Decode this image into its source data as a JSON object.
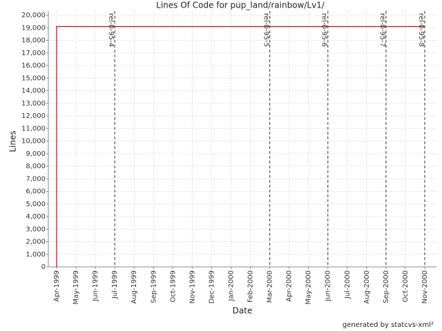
{
  "chart_data": {
    "type": "line",
    "title": "Lines Of Code for pup_land/rainbow/Lv1/",
    "x_label": "Date",
    "y_label": "Lines",
    "footer": "generated by statcvs-xml²",
    "x": [
      "1999-04",
      "1999-04",
      "2000-11"
    ],
    "series": [
      {
        "color": "#cc0000",
        "values": [
          0,
          19100,
          19100
        ]
      }
    ],
    "xlim": [
      "1999-04",
      "2000-11"
    ],
    "xticks": [
      {
        "value": "1999-04",
        "label": "Apr-1999"
      },
      {
        "value": "1999-05",
        "label": "May-1999"
      },
      {
        "value": "1999-06",
        "label": "Jun-1999"
      },
      {
        "value": "1999-07",
        "label": "Jul-1999"
      },
      {
        "value": "1999-08",
        "label": "Aug-1999"
      },
      {
        "value": "1999-09",
        "label": "Sep-1999"
      },
      {
        "value": "1999-10",
        "label": "Oct-1999"
      },
      {
        "value": "1999-11",
        "label": "Nov-1999"
      },
      {
        "value": "1999-12",
        "label": "Dec-1999"
      },
      {
        "value": "2000-01",
        "label": "Jan-2000"
      },
      {
        "value": "2000-02",
        "label": "Feb-2000"
      },
      {
        "value": "2000-03",
        "label": "Mar-2000"
      },
      {
        "value": "2000-04",
        "label": "Apr-2000"
      },
      {
        "value": "2000-05",
        "label": "May-2000"
      },
      {
        "value": "2000-06",
        "label": "Jun-2000"
      },
      {
        "value": "2000-07",
        "label": "Jul-2000"
      },
      {
        "value": "2000-08",
        "label": "Aug-2000"
      },
      {
        "value": "2000-09",
        "label": "Sep-2000"
      },
      {
        "value": "2000-10",
        "label": "Oct-2000"
      },
      {
        "value": "2000-11",
        "label": "Nov-2000"
      }
    ],
    "ylim": [
      0,
      20000
    ],
    "yticks": [
      0,
      {
        "value": 1000,
        "label": "1,000"
      },
      {
        "value": 2000,
        "label": "2,000"
      },
      {
        "value": 3000,
        "label": "3,000"
      },
      {
        "value": 4000,
        "label": "4,000"
      },
      {
        "value": 5000,
        "label": "5,000"
      },
      {
        "value": 6000,
        "label": "6,000"
      },
      {
        "value": 7000,
        "label": "7,000"
      },
      {
        "value": 8000,
        "label": "8,000"
      },
      {
        "value": 9000,
        "label": "9,000"
      },
      {
        "value": 10000,
        "label": "10,000"
      },
      {
        "value": 11000,
        "label": "11,000"
      },
      {
        "value": 12000,
        "label": "12,000"
      },
      {
        "value": 13000,
        "label": "13,000"
      },
      {
        "value": 14000,
        "label": "14,000"
      },
      {
        "value": 15000,
        "label": "15,000"
      },
      {
        "value": 16000,
        "label": "16,000"
      },
      {
        "value": 17000,
        "label": "17,000"
      },
      {
        "value": 18000,
        "label": "18,000"
      },
      {
        "value": 19000,
        "label": "19,000"
      },
      {
        "value": 20000,
        "label": "20,000"
      }
    ],
    "grid": true,
    "markers": [
      {
        "x": "1999-07",
        "label": "rel-0-95-4"
      },
      {
        "x": "2000-03",
        "label": "rel-0-95-5"
      },
      {
        "x": "2000-06",
        "label": "rel-0-95-6"
      },
      {
        "x": "2000-09",
        "label": "rel-0-95-7"
      },
      {
        "x": "2000-11",
        "label": "rel-0-95-8"
      }
    ]
  }
}
